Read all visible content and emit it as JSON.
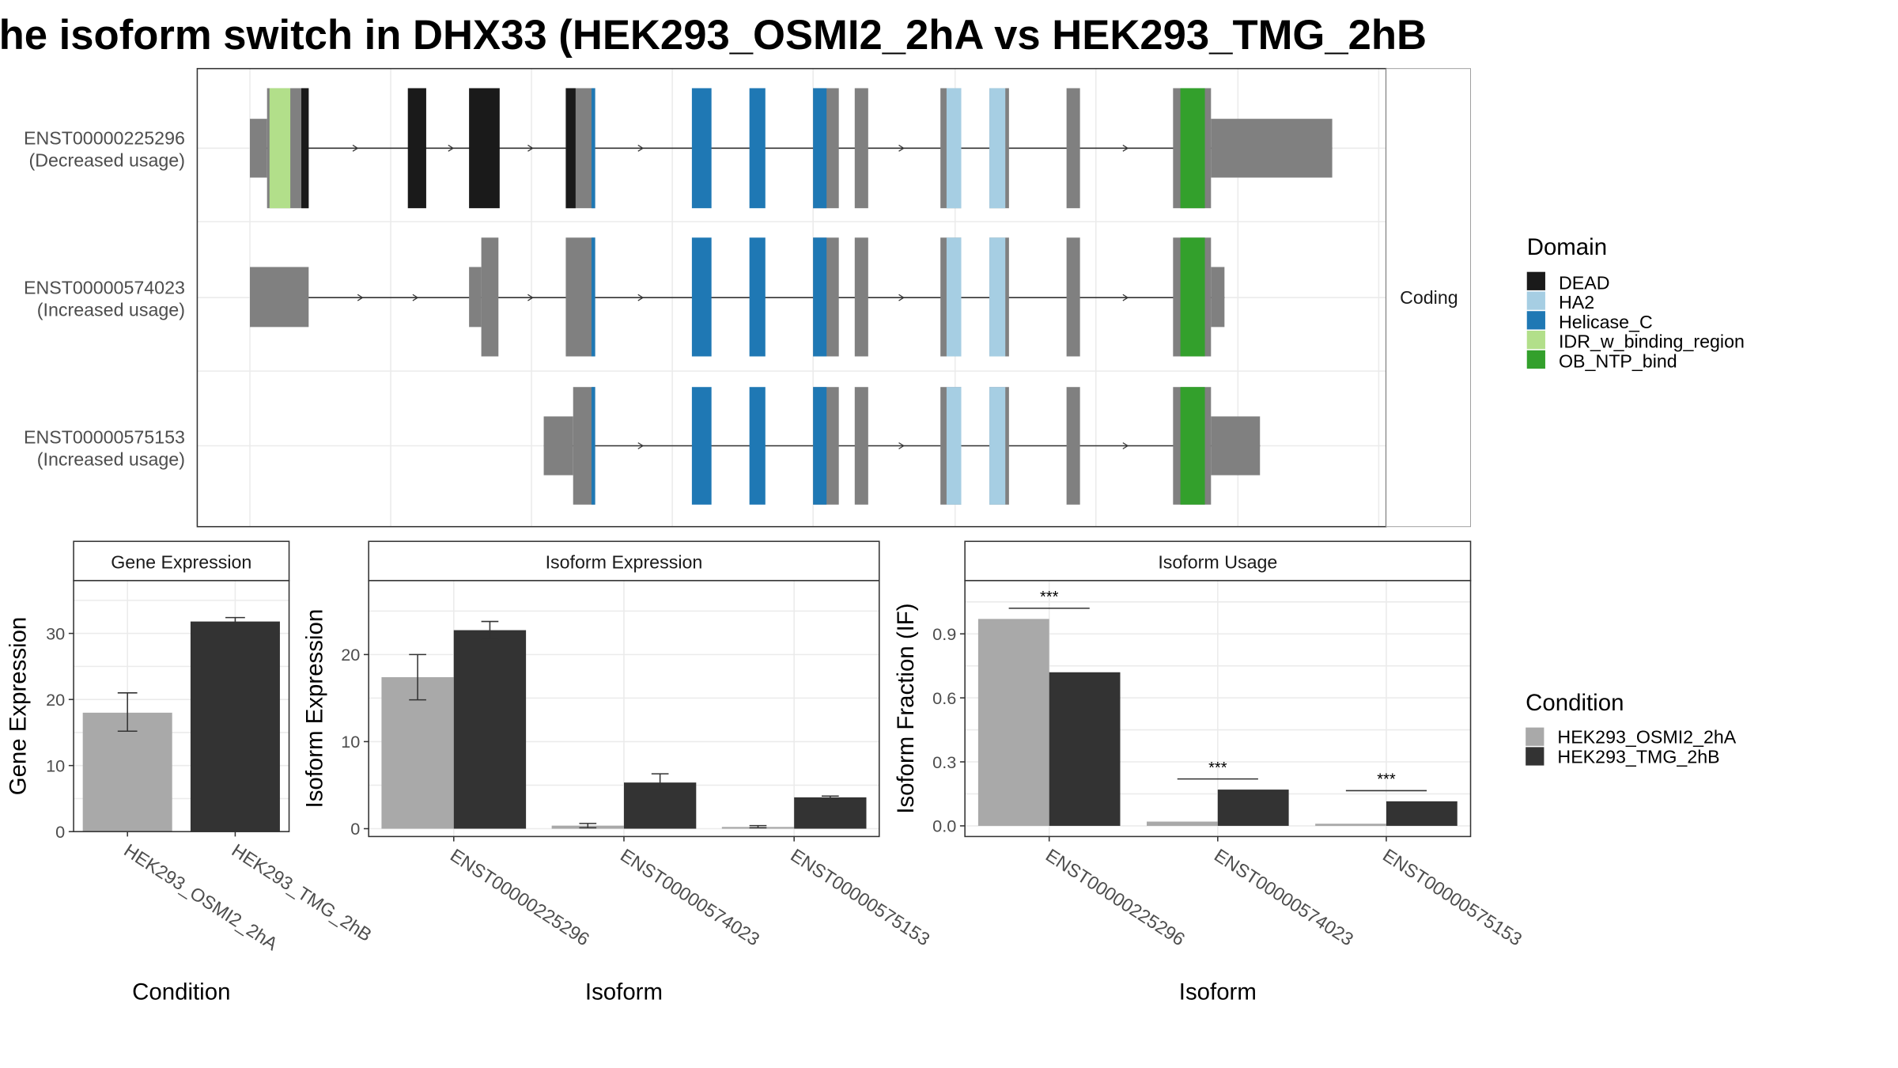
{
  "title": "he isoform switch in DHX33 (HEK293_OSMI2_2hA vs HEK293_TMG_2hB",
  "structure_panel": {
    "strip_label": "Coding",
    "transcripts": [
      {
        "id": "ENST00000225296",
        "note": "(Decreased usage)"
      },
      {
        "id": "ENST00000574023",
        "note": "(Increased usage)"
      },
      {
        "id": "ENST00000575153",
        "note": "(Increased usage)"
      }
    ]
  },
  "domain_legend": {
    "title": "Domain",
    "items": [
      {
        "label": "DEAD",
        "color": "#1a1a1a"
      },
      {
        "label": "HA2",
        "color": "#a6cee3"
      },
      {
        "label": "Helicase_C",
        "color": "#1f78b4"
      },
      {
        "label": "IDR_w_binding_region",
        "color": "#b2df8a"
      },
      {
        "label": "OB_NTP_bind",
        "color": "#33a02c"
      }
    ]
  },
  "condition_legend": {
    "title": "Condition",
    "items": [
      {
        "label": "HEK293_OSMI2_2hA",
        "color": "#a9a9a9"
      },
      {
        "label": "HEK293_TMG_2hB",
        "color": "#333333"
      }
    ]
  },
  "chart_data": [
    {
      "type": "bar",
      "title": "Gene Expression",
      "xlabel": "Condition",
      "ylabel": "Gene Expression",
      "ylim": [
        0,
        38
      ],
      "yticks": [
        0,
        10,
        20,
        30
      ],
      "categories": [
        "HEK293_OSMI2_2hA",
        "HEK293_TMG_2hB"
      ],
      "values": [
        18,
        31.8
      ],
      "errors": [
        [
          15.2,
          21.0
        ],
        [
          31.3,
          32.4
        ]
      ]
    },
    {
      "type": "bar",
      "title": "Isoform Expression",
      "xlabel": "Isoform",
      "ylabel": "Isoform Expression",
      "ylim": [
        -0.9,
        28.5
      ],
      "yticks": [
        0,
        10,
        20
      ],
      "categories": [
        "ENST00000225296",
        "ENST00000574023",
        "ENST00000575153"
      ],
      "series": [
        {
          "name": "HEK293_OSMI2_2hA",
          "values": [
            17.4,
            0.35,
            0.2
          ],
          "errors": [
            [
              14.8,
              20.0
            ],
            [
              0.1,
              0.6
            ],
            [
              0.1,
              0.35
            ]
          ]
        },
        {
          "name": "HEK293_TMG_2hB",
          "values": [
            22.8,
            5.3,
            3.6
          ],
          "errors": [
            [
              21.7,
              23.8
            ],
            [
              4.5,
              6.3
            ],
            [
              3.45,
              3.75
            ]
          ]
        }
      ]
    },
    {
      "type": "bar",
      "title": "Isoform Usage",
      "xlabel": "Isoform",
      "ylabel": "Isoform Fraction (IF)",
      "ylim": [
        -0.05,
        1.15
      ],
      "yticks": [
        0.0,
        0.3,
        0.6,
        0.9
      ],
      "ytick_labels": [
        "0.0",
        "0.3",
        "0.6",
        "0.9"
      ],
      "categories": [
        "ENST00000225296",
        "ENST00000574023",
        "ENST00000575153"
      ],
      "series": [
        {
          "name": "HEK293_OSMI2_2hA",
          "values": [
            0.97,
            0.02,
            0.01
          ]
        },
        {
          "name": "HEK293_TMG_2hB",
          "values": [
            0.72,
            0.17,
            0.115
          ]
        }
      ],
      "significance": [
        {
          "label": "***",
          "level": 1.02
        },
        {
          "label": "***",
          "level": 0.22
        },
        {
          "label": "***",
          "level": 0.165
        }
      ]
    }
  ]
}
